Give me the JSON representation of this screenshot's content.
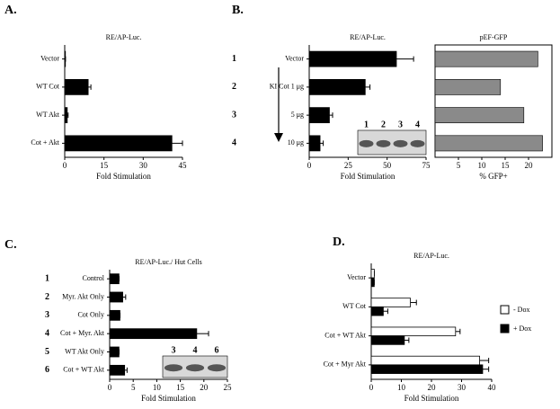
{
  "chart_data": [
    {
      "type": "bar",
      "orientation": "horizontal",
      "label": "A.",
      "title": "RE/AP-Luc.",
      "categories": [
        "Vector",
        "WT Cot",
        "WT Akt",
        "Cot + Akt"
      ],
      "values": [
        0.3,
        9,
        1,
        41
      ],
      "errors": [
        0,
        1,
        0.3,
        4
      ],
      "color": "#000000",
      "xlim": [
        0,
        45
      ],
      "xticks": [
        0,
        15,
        30,
        45
      ],
      "xlabel": "Fold Stimulation"
    },
    {
      "type": "bar",
      "orientation": "horizontal",
      "label": "B.",
      "title": "RE/AP-Luc.",
      "row_labels": [
        "1",
        "2",
        "3",
        "4"
      ],
      "categories": [
        "Vector",
        "KI Cot 1 μg",
        "5 μg",
        "10 μg"
      ],
      "values": [
        56,
        36,
        13,
        7
      ],
      "errors": [
        11,
        3,
        2,
        2
      ],
      "color": "#000000",
      "xlim": [
        0,
        75
      ],
      "xticks": [
        0,
        25,
        50,
        75
      ],
      "xlabel": "Fold Stimulation",
      "inset_labels": [
        "1",
        "2",
        "3",
        "4"
      ]
    },
    {
      "type": "bar",
      "orientation": "horizontal",
      "title": "pEF-GFP",
      "values": [
        22,
        14,
        19,
        23
      ],
      "color": "#8a8a8a",
      "xlim": [
        0,
        25
      ],
      "xticks": [
        5,
        10,
        15,
        20
      ],
      "xlabel": "% GFP+"
    },
    {
      "type": "bar",
      "orientation": "horizontal",
      "label": "C.",
      "title": "RE/AP-Luc./ Hut Cells",
      "row_labels": [
        "1",
        "2",
        "3",
        "4",
        "5",
        "6"
      ],
      "categories": [
        "Control",
        "Myr. Akt Only",
        "Cot Only",
        "Cot + Myr. Akt",
        "WT Akt Only",
        "Cot + WT Akt"
      ],
      "values": [
        2,
        2.8,
        2.2,
        18.5,
        2,
        3.2
      ],
      "errors": [
        0,
        0.6,
        0,
        2.5,
        0,
        0.5
      ],
      "color": "#000000",
      "xlim": [
        0,
        25
      ],
      "xticks": [
        0,
        5,
        10,
        15,
        20,
        25
      ],
      "xlabel": "Fold Stimulation",
      "inset_labels": [
        "3",
        "4",
        "6"
      ]
    },
    {
      "type": "grouped_bar",
      "orientation": "horizontal",
      "label": "D.",
      "title": "RE/AP-Luc.",
      "categories": [
        "Vector",
        "WT Cot",
        "Cot + WT Akt",
        "Cot + Myr Akt"
      ],
      "series": [
        {
          "name": "- Dox",
          "color": "#ffffff",
          "values": [
            1,
            13,
            28,
            36
          ],
          "errors": [
            0,
            2,
            1.5,
            3
          ]
        },
        {
          "name": "+ Dox",
          "color": "#000000",
          "values": [
            1,
            4,
            11,
            37
          ],
          "errors": [
            0,
            1.5,
            1.5,
            2
          ]
        }
      ],
      "xlim": [
        0,
        40
      ],
      "xticks": [
        0,
        10,
        20,
        30,
        40
      ],
      "xlabel": "Fold Stimulation"
    }
  ]
}
